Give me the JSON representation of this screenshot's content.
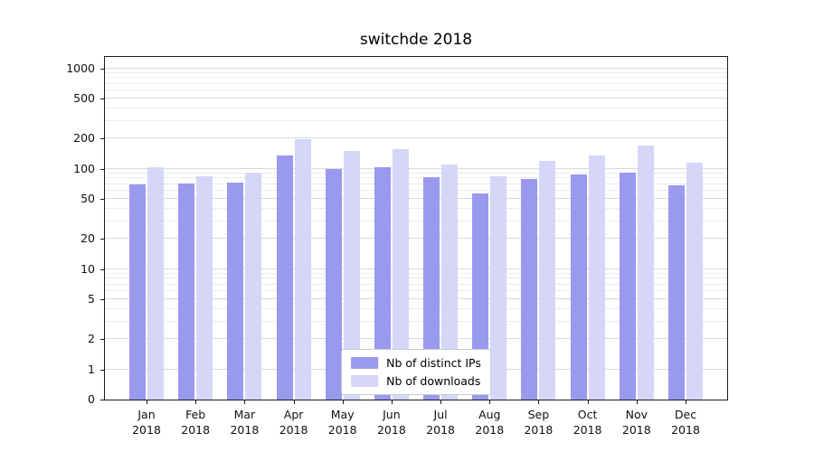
{
  "title": "switchde 2018",
  "chart_data": {
    "type": "bar",
    "title": "switchde 2018",
    "categories": [
      "Jan 2018",
      "Feb 2018",
      "Mar 2018",
      "Apr 2018",
      "May 2018",
      "Jun 2018",
      "Jul 2018",
      "Aug 2018",
      "Sep 2018",
      "Oct 2018",
      "Nov 2018",
      "Dec 2018"
    ],
    "series": [
      {
        "name": "Nb of distinct IPs",
        "color": "#9999ee",
        "values": [
          70,
          72,
          73,
          135,
          100,
          104,
          82,
          57,
          79,
          87,
          91,
          68
        ]
      },
      {
        "name": "Nb of downloads",
        "color": "#d6d6f8",
        "values": [
          103,
          85,
          92,
          197,
          150,
          157,
          110,
          85,
          120,
          137,
          170,
          115
        ]
      }
    ],
    "xlabel": "",
    "ylabel": "",
    "yscale": "symlog",
    "yticks": [
      0,
      1,
      2,
      5,
      10,
      20,
      50,
      100,
      200,
      500,
      1000
    ],
    "ylim": [
      0,
      1300
    ],
    "grid": true,
    "legend_position": "lower center"
  }
}
